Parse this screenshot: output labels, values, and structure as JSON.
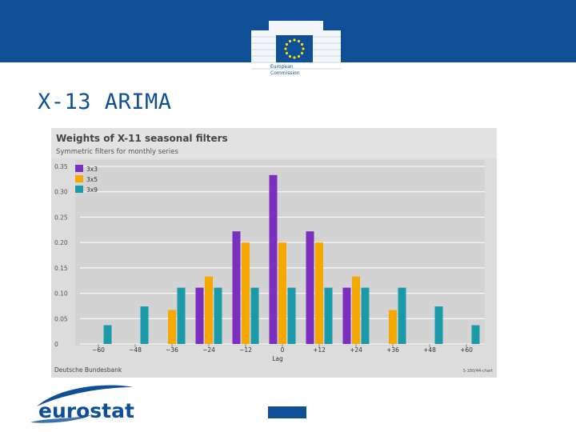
{
  "slide": {
    "title": "X-13 ARIMA",
    "ec_logo_text": [
      "European",
      "Commission"
    ],
    "eurostat_logo_text": "eurostat"
  },
  "colors": {
    "brand_blue": "#0e4f96",
    "eu_star_yellow": "#ffdd00",
    "eurostat_orange": "#f0a500",
    "chart_bg": "#dcdcdc",
    "plot_bg": "#d6d6d6",
    "series_3x3": "#7b2fbe",
    "series_3x5": "#f5a800",
    "series_3x9": "#1a9aa8"
  },
  "chart_data": {
    "type": "bar",
    "title": "Weights of X-11 seasonal filters",
    "subtitle": "Symmetric filters for monthly series",
    "xlabel": "Lag",
    "ylabel": "",
    "source": "Deutsche Bundesbank",
    "credit": "S-180/44-chart",
    "categories": [
      "−60",
      "−48",
      "−36",
      "−24",
      "−12",
      "0",
      "+12",
      "+24",
      "+36",
      "+48",
      "+60"
    ],
    "y_tick_labels": [
      "0",
      "0.05",
      "0.10",
      "0.15",
      "0.20",
      "0.25",
      "0.30",
      "0.35"
    ],
    "ylim": [
      0,
      0.35
    ],
    "grid": true,
    "legend_position": "top-left",
    "series": [
      {
        "name": "3x3",
        "values": [
          0,
          0,
          0,
          0.111,
          0.222,
          0.333,
          0.222,
          0.111,
          0,
          0,
          0
        ]
      },
      {
        "name": "3x5",
        "values": [
          0,
          0,
          0.067,
          0.133,
          0.2,
          0.2,
          0.2,
          0.133,
          0.067,
          0,
          0
        ]
      },
      {
        "name": "3x9",
        "values": [
          0.037,
          0.074,
          0.111,
          0.111,
          0.111,
          0.111,
          0.111,
          0.111,
          0.111,
          0.074,
          0.037
        ]
      }
    ]
  }
}
